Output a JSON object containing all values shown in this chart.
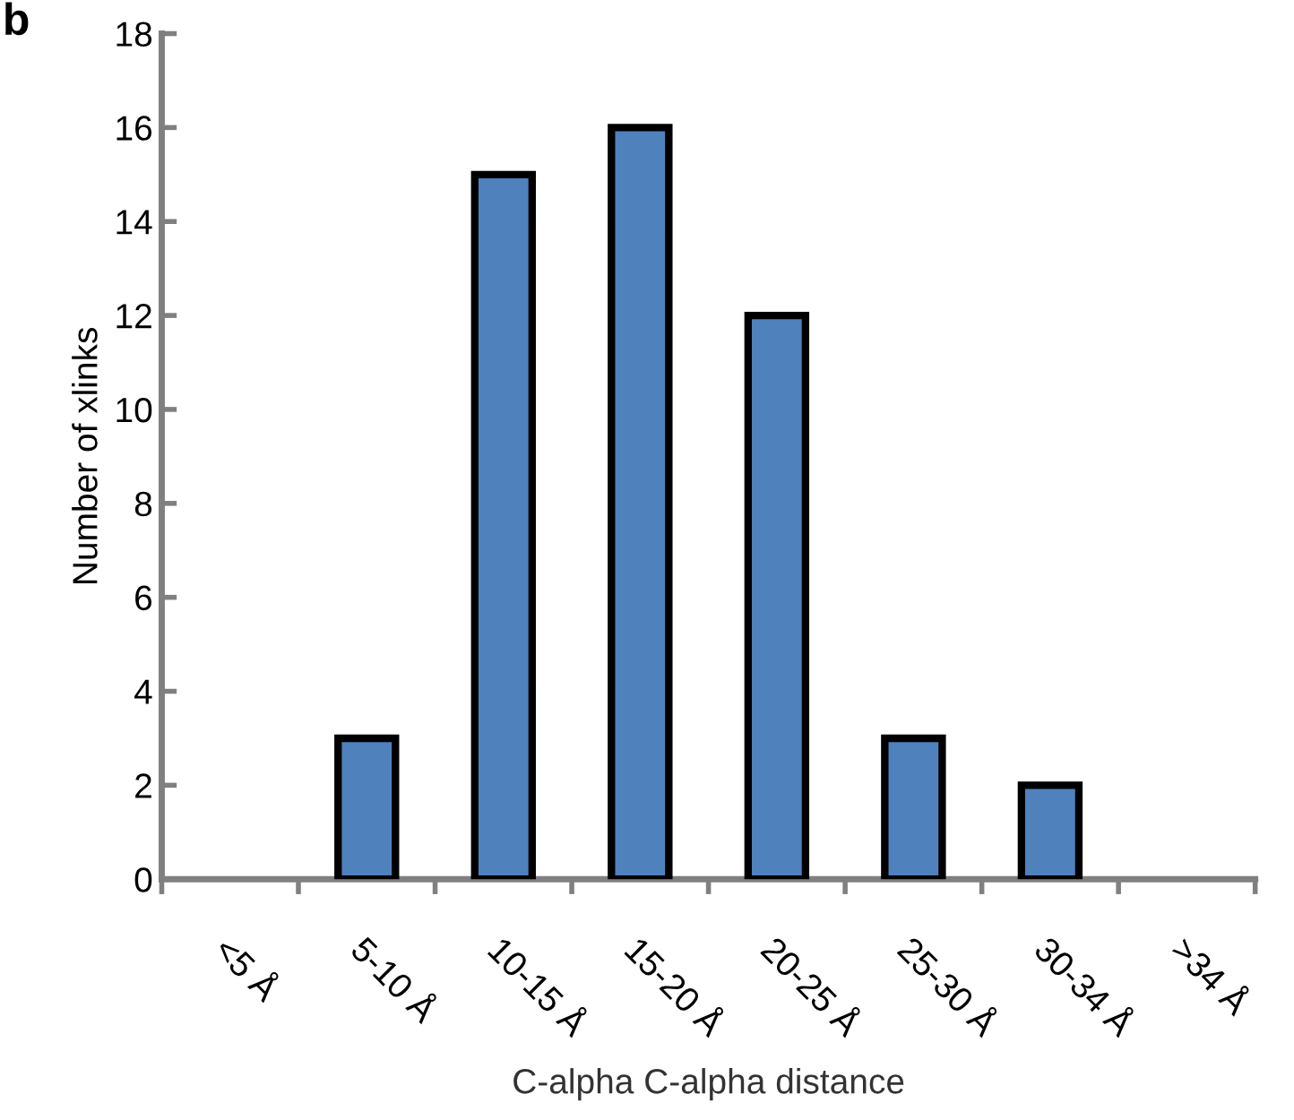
{
  "chart_data": {
    "type": "bar",
    "categories": [
      "<5 Å",
      "5-10 Å",
      "10-15 Å",
      "15-20 Å",
      "20-25 Å",
      "25-30 Å",
      "30-34 Å",
      ">34 Å"
    ],
    "values": [
      0,
      3,
      15,
      16,
      12,
      3,
      2,
      0
    ],
    "color": "#4f81bd",
    "xlabel": "C-alpha C-alpha distance",
    "ylabel": "Number of xlinks",
    "ylim": [
      0,
      18
    ],
    "yticks": [
      0,
      2,
      4,
      6,
      8,
      10,
      12,
      14,
      16,
      18
    ],
    "annotations": [
      "b"
    ],
    "grid": false,
    "legend": false
  }
}
